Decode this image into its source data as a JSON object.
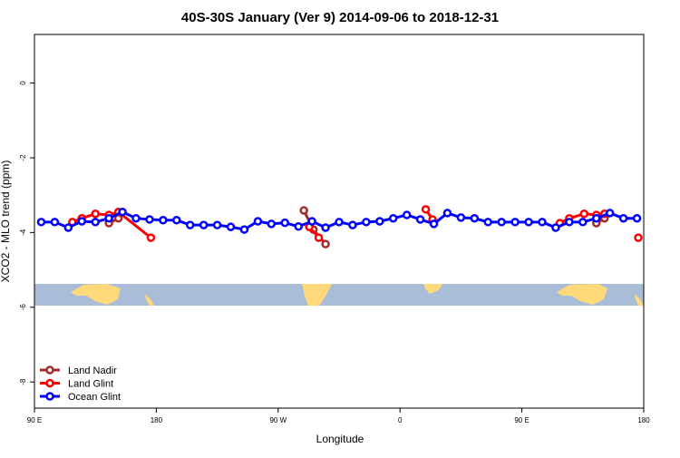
{
  "chart_data": {
    "type": "line",
    "title": "40S-30S January (Ver 9)   2014-09-06 to 2018-12-31",
    "x_label": "Longitude",
    "y_label": "XCO2 - MLO trend (ppm)",
    "xlim": [
      90,
      540
    ],
    "ylim": [
      -8.7,
      1.3
    ],
    "xticks": [
      {
        "value": 90,
        "label": "90 E"
      },
      180,
      {
        "value": 270,
        "label": "90 W"
      },
      {
        "value": 360,
        "label": "0"
      },
      {
        "value": 450,
        "label": "90 E"
      },
      {
        "value": 540,
        "label": "180"
      }
    ],
    "yticks": [
      -8,
      -6,
      -4,
      -2,
      0
    ],
    "legend": "bottom-left",
    "series": [
      {
        "name": "Land Nadir",
        "color": "#a52a2a",
        "x": [
          145,
          152,
          null,
          289,
          296,
          305,
          null,
          505,
          511
        ],
        "values": [
          -3.75,
          -3.62,
          null,
          -3.41,
          -3.92,
          -4.31,
          null,
          -3.75,
          -3.62
        ]
      },
      {
        "name": "Land Glint",
        "color": "#ff0000",
        "x": [
          118,
          125,
          135,
          145,
          152,
          176,
          null,
          293,
          300,
          null,
          379,
          384,
          null,
          478,
          485,
          496,
          505,
          511,
          null,
          536
        ],
        "values": [
          -3.72,
          -3.62,
          -3.5,
          -3.53,
          -3.45,
          -4.14,
          null,
          -3.85,
          -4.14,
          null,
          -3.38,
          -3.65,
          null,
          -3.75,
          -3.62,
          -3.5,
          -3.53,
          -3.5,
          null,
          -4.14
        ]
      },
      {
        "name": "Ocean Glint",
        "color": "#0000ff",
        "x": [
          95,
          105,
          115,
          125,
          135,
          145,
          155,
          165,
          175,
          185,
          195,
          205,
          215,
          225,
          235,
          245,
          255,
          265,
          275,
          285,
          295,
          305,
          315,
          325,
          335,
          345,
          355,
          365,
          375,
          385,
          395,
          405,
          415,
          425,
          435,
          445,
          455,
          465,
          475,
          485,
          495,
          505,
          515,
          525,
          535
        ],
        "values": [
          -3.72,
          -3.72,
          -3.87,
          -3.7,
          -3.72,
          -3.62,
          -3.45,
          -3.62,
          -3.65,
          -3.67,
          -3.67,
          -3.8,
          -3.8,
          -3.8,
          -3.85,
          -3.92,
          -3.7,
          -3.77,
          -3.74,
          -3.84,
          -3.7,
          -3.87,
          -3.72,
          -3.8,
          -3.72,
          -3.7,
          -3.62,
          -3.53,
          -3.65,
          -3.77,
          -3.48,
          -3.6,
          -3.62,
          -3.72,
          -3.72,
          -3.72,
          -3.72,
          -3.72,
          -3.87,
          -3.72,
          -3.72,
          -3.62,
          -3.48,
          -3.62,
          -3.62
        ]
      }
    ]
  }
}
